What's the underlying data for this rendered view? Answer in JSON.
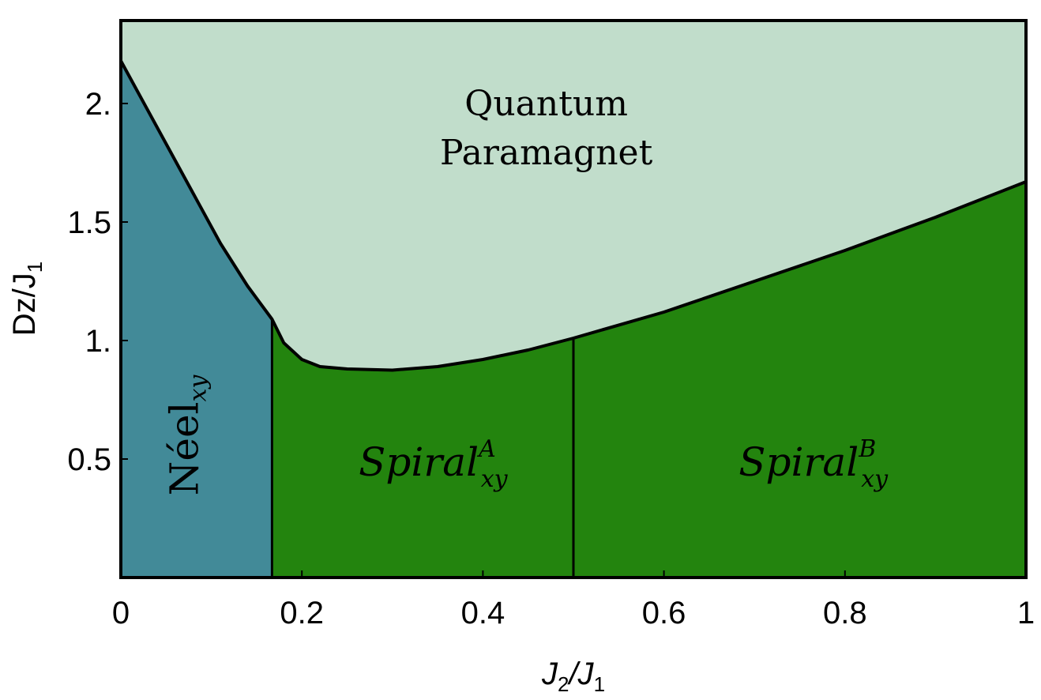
{
  "chart_data": {
    "type": "area",
    "title": "",
    "xlabel": {
      "main": "J",
      "sub1": "2",
      "slash": "/J",
      "sub2": "1"
    },
    "ylabel": {
      "main": "Dz/J",
      "sub": "1"
    },
    "xlim": [
      0,
      1
    ],
    "ylim": [
      0,
      2.35
    ],
    "x_ticks": [
      0,
      0.2,
      0.4,
      0.6,
      0.8,
      1
    ],
    "x_tick_labels": [
      "0",
      "0.2",
      "0.4",
      "0.6",
      "0.8",
      "1"
    ],
    "y_ticks": [
      0.5,
      1.0,
      1.5,
      2.0
    ],
    "y_tick_labels": [
      "0.5",
      "1.",
      "1.5",
      "2."
    ],
    "grid": false,
    "legend": "none",
    "phase_boundary": {
      "x": [
        0,
        0.02,
        0.05,
        0.08,
        0.11,
        0.14,
        0.167,
        0.18,
        0.2,
        0.22,
        0.25,
        0.3,
        0.35,
        0.4,
        0.45,
        0.5,
        0.6,
        0.7,
        0.8,
        0.9,
        1.0
      ],
      "y": [
        2.18,
        2.04,
        1.83,
        1.62,
        1.41,
        1.23,
        1.09,
        0.99,
        0.92,
        0.89,
        0.88,
        0.875,
        0.89,
        0.92,
        0.96,
        1.01,
        1.12,
        1.25,
        1.38,
        1.52,
        1.67
      ]
    },
    "vertical_boundaries": [
      {
        "x": 0.167,
        "y_top": 1.09
      },
      {
        "x": 0.5,
        "y_top": 1.01
      }
    ],
    "regions": [
      {
        "name": "Quantum Paramagnet",
        "lines": [
          "Quantum",
          "Paramagnet"
        ],
        "color": "#c1ddcb",
        "x_range": [
          0,
          1
        ],
        "label_xy": [
          0.47,
          1.95
        ]
      },
      {
        "name": "Néel",
        "base": "Néel",
        "sub": "xy",
        "color": "#428a98",
        "x_range": [
          0,
          0.167
        ],
        "label_xy": [
          0.085,
          0.6
        ]
      },
      {
        "name": "Spiral A",
        "base": "Spiral",
        "sup": "A",
        "sub": "xy",
        "color": "#23840e",
        "x_range": [
          0.167,
          0.5
        ],
        "label_xy": [
          0.345,
          0.43
        ]
      },
      {
        "name": "Spiral B",
        "base": "Spiral",
        "sup": "B",
        "sub": "xy",
        "color": "#23840e",
        "x_range": [
          0.5,
          1
        ],
        "label_xy": [
          0.765,
          0.43
        ]
      }
    ]
  }
}
